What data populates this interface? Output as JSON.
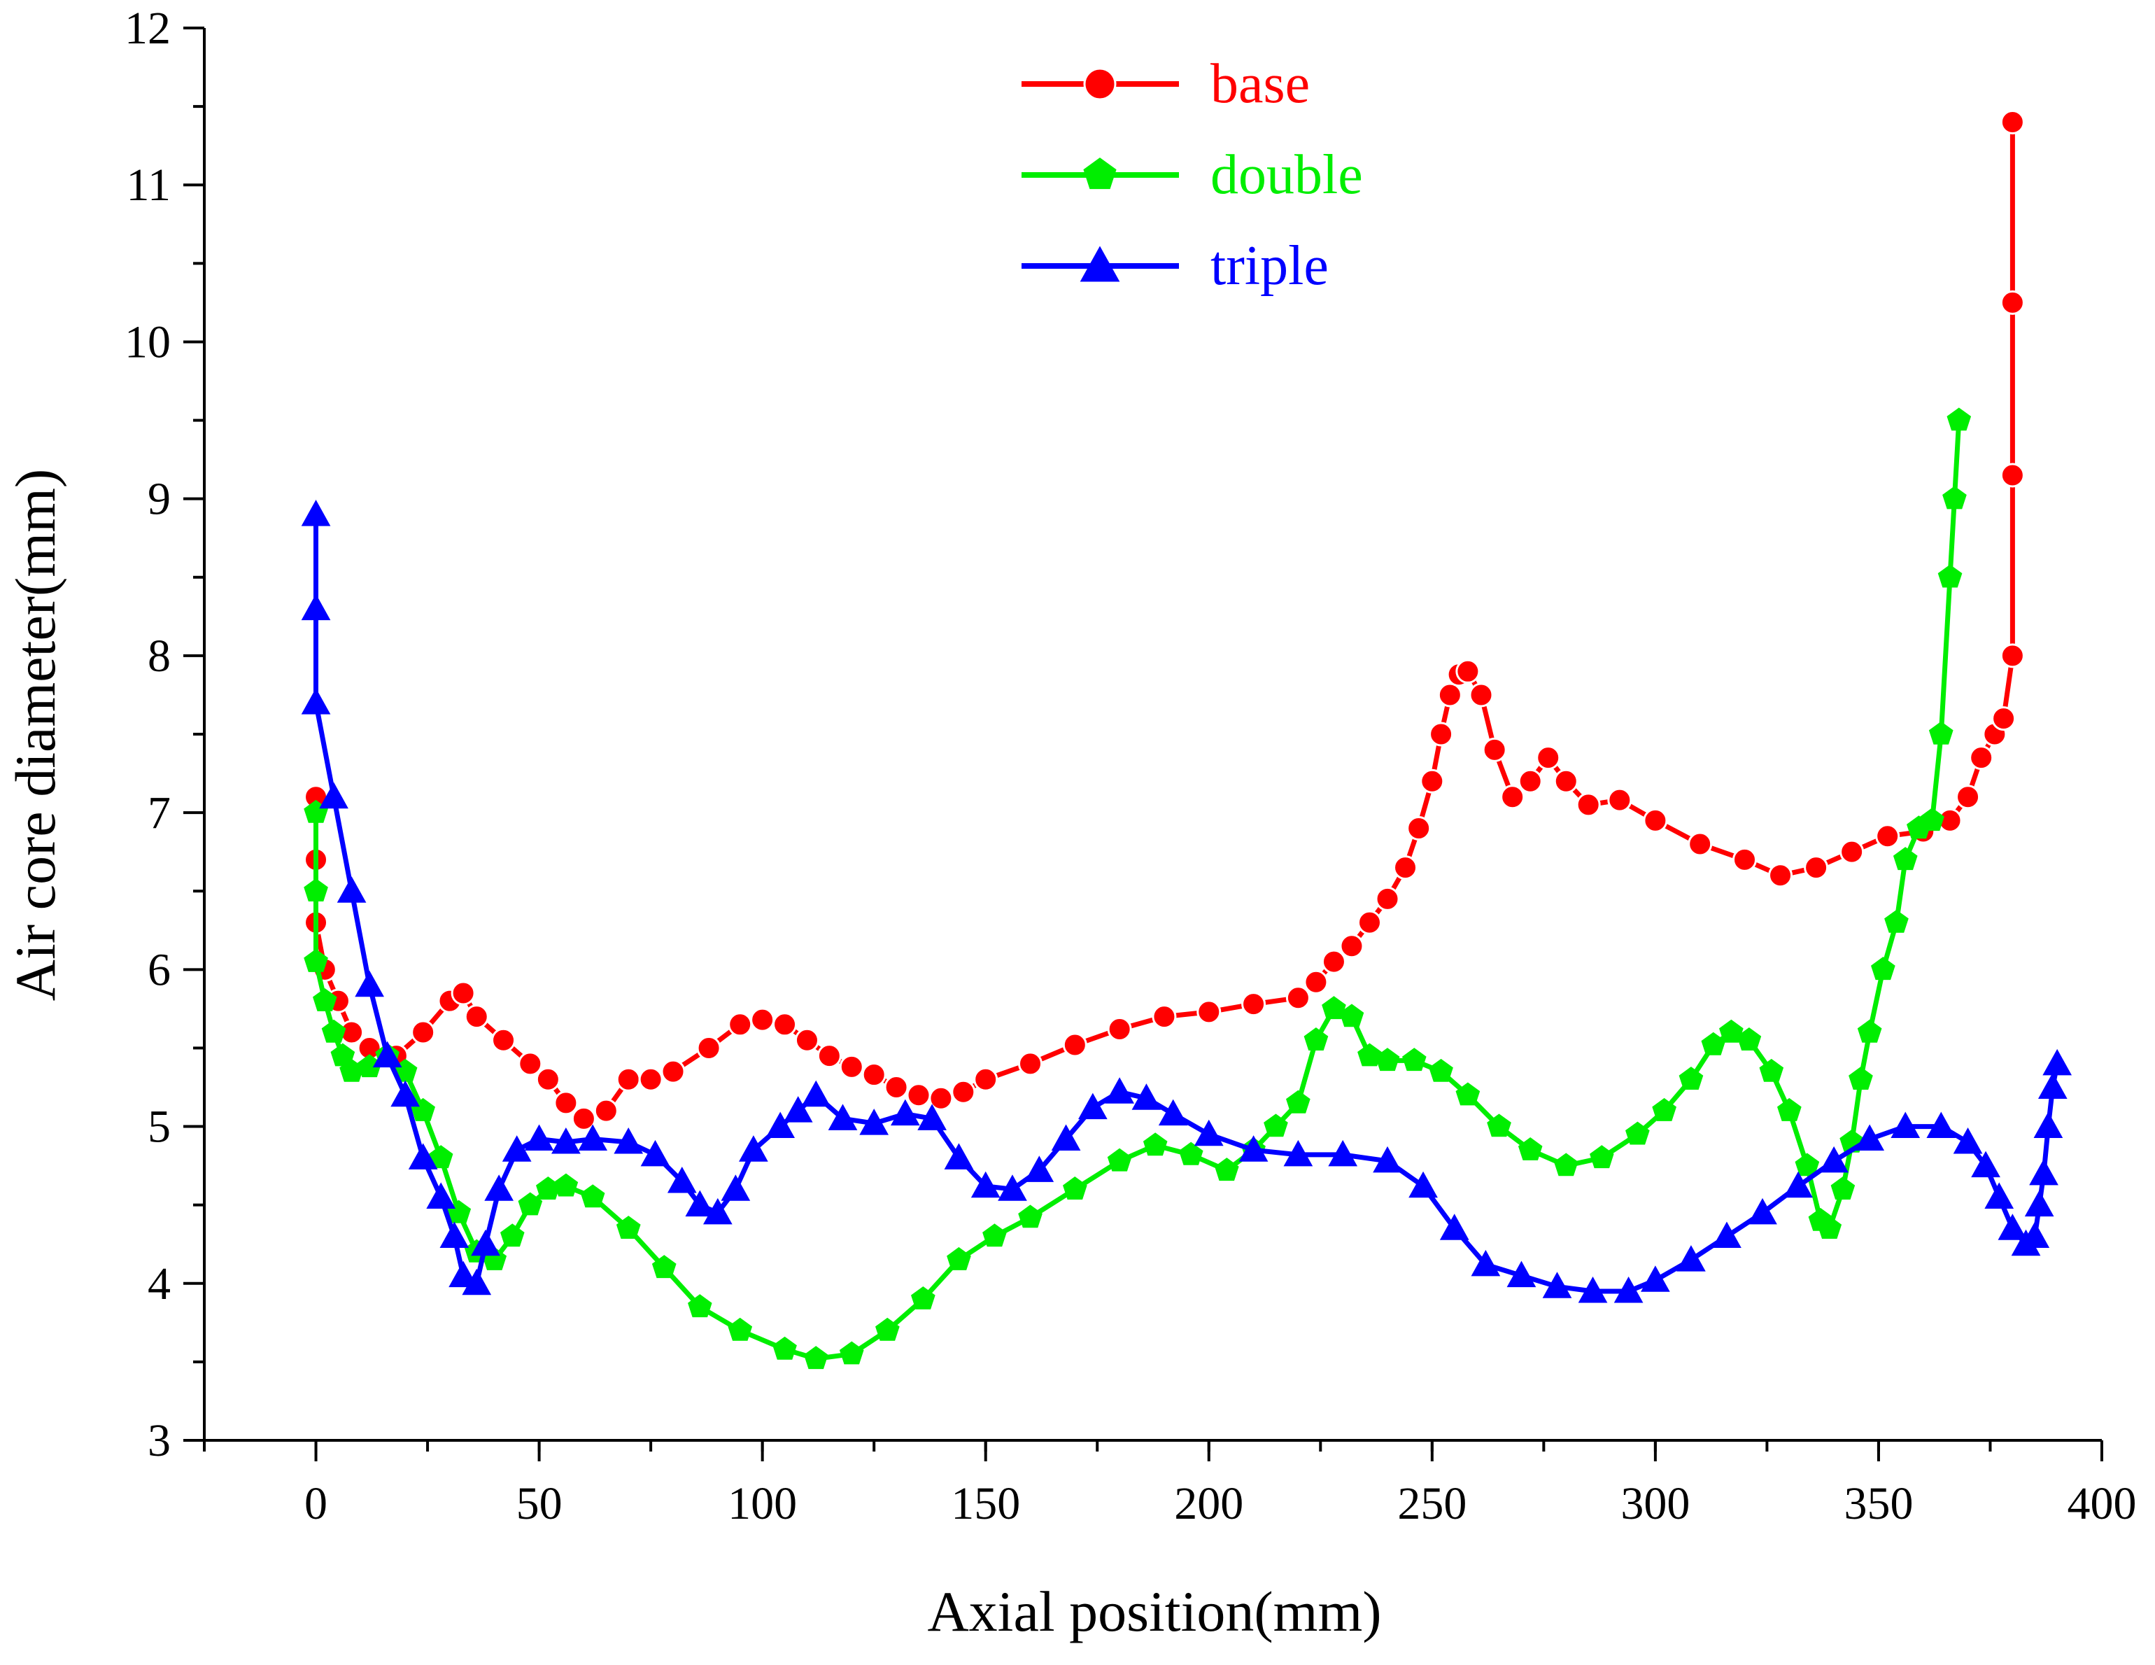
{
  "chart_data": {
    "type": "line",
    "xlabel": "Axial position(mm)",
    "ylabel": "Air core diameter(mm)",
    "xlim": [
      -25,
      400
    ],
    "ylim": [
      3,
      12
    ],
    "x_ticks": [
      0,
      50,
      100,
      150,
      200,
      250,
      300,
      350,
      400
    ],
    "y_ticks": [
      3,
      4,
      5,
      6,
      7,
      8,
      9,
      10,
      11,
      12
    ],
    "x_minor_step": 25,
    "grid": false,
    "legend_position": "top-center",
    "series": [
      {
        "name": "base",
        "color": "#ff0000",
        "marker": "circle",
        "points": [
          [
            0,
            7.1
          ],
          [
            0,
            6.7
          ],
          [
            0,
            6.3
          ],
          [
            2,
            6.0
          ],
          [
            5,
            5.8
          ],
          [
            8,
            5.6
          ],
          [
            12,
            5.5
          ],
          [
            18,
            5.45
          ],
          [
            24,
            5.6
          ],
          [
            30,
            5.8
          ],
          [
            33,
            5.85
          ],
          [
            36,
            5.7
          ],
          [
            42,
            5.55
          ],
          [
            48,
            5.4
          ],
          [
            52,
            5.3
          ],
          [
            56,
            5.15
          ],
          [
            60,
            5.05
          ],
          [
            65,
            5.1
          ],
          [
            70,
            5.3
          ],
          [
            75,
            5.3
          ],
          [
            80,
            5.35
          ],
          [
            88,
            5.5
          ],
          [
            95,
            5.65
          ],
          [
            100,
            5.68
          ],
          [
            105,
            5.65
          ],
          [
            110,
            5.55
          ],
          [
            115,
            5.45
          ],
          [
            120,
            5.38
          ],
          [
            125,
            5.33
          ],
          [
            130,
            5.25
          ],
          [
            135,
            5.2
          ],
          [
            140,
            5.18
          ],
          [
            145,
            5.22
          ],
          [
            150,
            5.3
          ],
          [
            160,
            5.4
          ],
          [
            170,
            5.52
          ],
          [
            180,
            5.62
          ],
          [
            190,
            5.7
          ],
          [
            200,
            5.73
          ],
          [
            210,
            5.78
          ],
          [
            220,
            5.82
          ],
          [
            224,
            5.92
          ],
          [
            228,
            6.05
          ],
          [
            232,
            6.15
          ],
          [
            236,
            6.3
          ],
          [
            240,
            6.45
          ],
          [
            244,
            6.65
          ],
          [
            247,
            6.9
          ],
          [
            250,
            7.2
          ],
          [
            252,
            7.5
          ],
          [
            254,
            7.75
          ],
          [
            256,
            7.88
          ],
          [
            258,
            7.9
          ],
          [
            261,
            7.75
          ],
          [
            264,
            7.4
          ],
          [
            268,
            7.1
          ],
          [
            272,
            7.2
          ],
          [
            276,
            7.35
          ],
          [
            280,
            7.2
          ],
          [
            285,
            7.05
          ],
          [
            292,
            7.08
          ],
          [
            300,
            6.95
          ],
          [
            310,
            6.8
          ],
          [
            320,
            6.7
          ],
          [
            328,
            6.6
          ],
          [
            336,
            6.65
          ],
          [
            344,
            6.75
          ],
          [
            352,
            6.85
          ],
          [
            360,
            6.88
          ],
          [
            366,
            6.95
          ],
          [
            370,
            7.1
          ],
          [
            373,
            7.35
          ],
          [
            376,
            7.5
          ],
          [
            378,
            7.6
          ],
          [
            380,
            8.0
          ],
          [
            380,
            9.15
          ],
          [
            380,
            10.25
          ],
          [
            380,
            11.4
          ]
        ]
      },
      {
        "name": "double",
        "color": "#00ee00",
        "marker": "pentagon",
        "points": [
          [
            0,
            7.0
          ],
          [
            0,
            6.5
          ],
          [
            0,
            6.05
          ],
          [
            2,
            5.8
          ],
          [
            4,
            5.6
          ],
          [
            6,
            5.45
          ],
          [
            8,
            5.35
          ],
          [
            12,
            5.38
          ],
          [
            16,
            5.45
          ],
          [
            20,
            5.35
          ],
          [
            24,
            5.1
          ],
          [
            28,
            4.8
          ],
          [
            32,
            4.45
          ],
          [
            36,
            4.2
          ],
          [
            40,
            4.15
          ],
          [
            44,
            4.3
          ],
          [
            48,
            4.5
          ],
          [
            52,
            4.6
          ],
          [
            56,
            4.62
          ],
          [
            62,
            4.55
          ],
          [
            70,
            4.35
          ],
          [
            78,
            4.1
          ],
          [
            86,
            3.85
          ],
          [
            95,
            3.7
          ],
          [
            105,
            3.58
          ],
          [
            112,
            3.52
          ],
          [
            120,
            3.55
          ],
          [
            128,
            3.7
          ],
          [
            136,
            3.9
          ],
          [
            144,
            4.15
          ],
          [
            152,
            4.3
          ],
          [
            160,
            4.42
          ],
          [
            170,
            4.6
          ],
          [
            180,
            4.78
          ],
          [
            188,
            4.88
          ],
          [
            196,
            4.82
          ],
          [
            204,
            4.72
          ],
          [
            210,
            4.85
          ],
          [
            215,
            5.0
          ],
          [
            220,
            5.15
          ],
          [
            224,
            5.55
          ],
          [
            228,
            5.75
          ],
          [
            232,
            5.7
          ],
          [
            236,
            5.45
          ],
          [
            240,
            5.42
          ],
          [
            246,
            5.42
          ],
          [
            252,
            5.35
          ],
          [
            258,
            5.2
          ],
          [
            265,
            5.0
          ],
          [
            272,
            4.85
          ],
          [
            280,
            4.75
          ],
          [
            288,
            4.8
          ],
          [
            296,
            4.95
          ],
          [
            302,
            5.1
          ],
          [
            308,
            5.3
          ],
          [
            313,
            5.52
          ],
          [
            317,
            5.6
          ],
          [
            321,
            5.55
          ],
          [
            326,
            5.35
          ],
          [
            330,
            5.1
          ],
          [
            334,
            4.75
          ],
          [
            337,
            4.4
          ],
          [
            339,
            4.35
          ],
          [
            342,
            4.6
          ],
          [
            344,
            4.9
          ],
          [
            346,
            5.3
          ],
          [
            348,
            5.6
          ],
          [
            351,
            6.0
          ],
          [
            354,
            6.3
          ],
          [
            356,
            6.7
          ],
          [
            359,
            6.9
          ],
          [
            362,
            6.95
          ],
          [
            364,
            7.5
          ],
          [
            366,
            8.5
          ],
          [
            367,
            9.0
          ],
          [
            368,
            9.5
          ]
        ]
      },
      {
        "name": "triple",
        "color": "#0000ff",
        "marker": "triangle",
        "points": [
          [
            0,
            8.9
          ],
          [
            0,
            8.3
          ],
          [
            0,
            7.7
          ],
          [
            4,
            7.1
          ],
          [
            8,
            6.5
          ],
          [
            12,
            5.9
          ],
          [
            16,
            5.45
          ],
          [
            20,
            5.2
          ],
          [
            24,
            4.8
          ],
          [
            28,
            4.55
          ],
          [
            31,
            4.3
          ],
          [
            33,
            4.05
          ],
          [
            36,
            4.0
          ],
          [
            38,
            4.25
          ],
          [
            41,
            4.6
          ],
          [
            45,
            4.85
          ],
          [
            50,
            4.92
          ],
          [
            56,
            4.9
          ],
          [
            62,
            4.92
          ],
          [
            70,
            4.9
          ],
          [
            76,
            4.82
          ],
          [
            82,
            4.65
          ],
          [
            86,
            4.5
          ],
          [
            90,
            4.45
          ],
          [
            94,
            4.6
          ],
          [
            98,
            4.85
          ],
          [
            104,
            5.0
          ],
          [
            108,
            5.1
          ],
          [
            112,
            5.2
          ],
          [
            118,
            5.05
          ],
          [
            125,
            5.02
          ],
          [
            132,
            5.08
          ],
          [
            138,
            5.05
          ],
          [
            144,
            4.8
          ],
          [
            150,
            4.62
          ],
          [
            156,
            4.6
          ],
          [
            162,
            4.72
          ],
          [
            168,
            4.92
          ],
          [
            174,
            5.12
          ],
          [
            180,
            5.22
          ],
          [
            186,
            5.18
          ],
          [
            192,
            5.08
          ],
          [
            200,
            4.95
          ],
          [
            210,
            4.85
          ],
          [
            220,
            4.82
          ],
          [
            230,
            4.82
          ],
          [
            240,
            4.78
          ],
          [
            248,
            4.62
          ],
          [
            255,
            4.35
          ],
          [
            262,
            4.12
          ],
          [
            270,
            4.05
          ],
          [
            278,
            3.98
          ],
          [
            286,
            3.95
          ],
          [
            294,
            3.95
          ],
          [
            300,
            4.02
          ],
          [
            308,
            4.15
          ],
          [
            316,
            4.3
          ],
          [
            324,
            4.45
          ],
          [
            332,
            4.62
          ],
          [
            340,
            4.78
          ],
          [
            348,
            4.92
          ],
          [
            356,
            5.0
          ],
          [
            364,
            5.0
          ],
          [
            370,
            4.9
          ],
          [
            374,
            4.75
          ],
          [
            377,
            4.55
          ],
          [
            380,
            4.35
          ],
          [
            383,
            4.25
          ],
          [
            385,
            4.3
          ],
          [
            386,
            4.5
          ],
          [
            387,
            4.7
          ],
          [
            388,
            5.0
          ],
          [
            389,
            5.25
          ],
          [
            390,
            5.4
          ]
        ]
      }
    ]
  }
}
